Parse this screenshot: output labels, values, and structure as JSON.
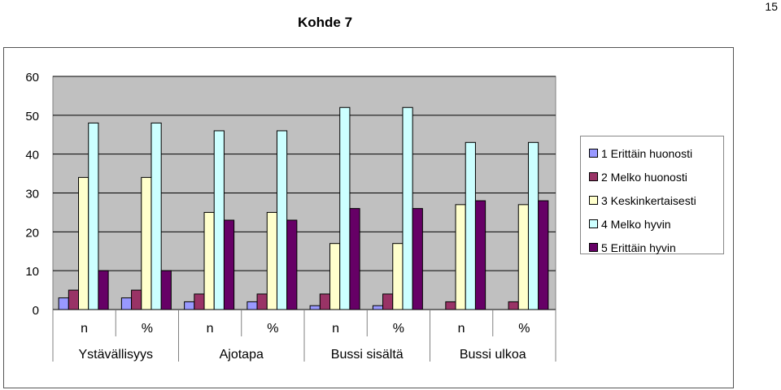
{
  "page_number": "15",
  "chart_data": {
    "type": "bar",
    "title": "Kohde 7",
    "xlabel": "",
    "ylabel": "",
    "ylim": [
      0,
      60
    ],
    "yticks": [
      "60",
      "50",
      "40",
      "30",
      "20",
      "10",
      "0"
    ],
    "ytick_values": [
      60,
      50,
      40,
      30,
      20,
      10,
      0
    ],
    "grid": true,
    "legend_position": "right",
    "categories": [
      "n",
      "%",
      "n",
      "%",
      "n",
      "%",
      "n",
      "%"
    ],
    "groups": [
      "Ystävällisyys",
      "Ajotapa",
      "Bussi sisältä",
      "Bussi ulkoa"
    ],
    "series": [
      {
        "name": "1 Erittäin huonosti",
        "color": "#9999ff",
        "values": [
          3,
          3,
          2,
          2,
          1,
          1,
          0,
          0
        ]
      },
      {
        "name": "2 Melko huonosti",
        "color": "#993366",
        "values": [
          5,
          5,
          4,
          4,
          4,
          4,
          2,
          2
        ]
      },
      {
        "name": "3 Keskinkertaisesti",
        "color": "#ffffcc",
        "values": [
          34,
          34,
          25,
          25,
          17,
          17,
          27,
          27
        ]
      },
      {
        "name": "4 Melko hyvin",
        "color": "#ccffff",
        "values": [
          48,
          48,
          46,
          46,
          52,
          52,
          43,
          43
        ]
      },
      {
        "name": "5 Erittäin hyvin",
        "color": "#660066",
        "values": [
          10,
          10,
          23,
          23,
          26,
          26,
          28,
          28
        ]
      }
    ],
    "plot_background": "#c0c0c0"
  }
}
